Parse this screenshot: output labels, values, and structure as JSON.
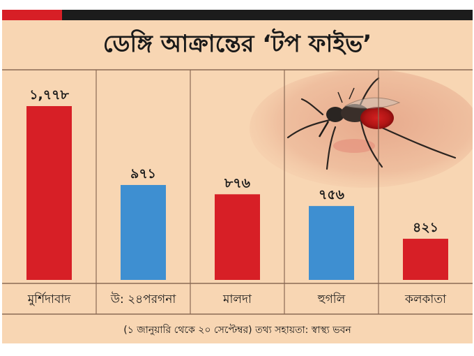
{
  "colors": {
    "background": "#f8d6b3",
    "top_bar": "#1c1c1c",
    "accent": "#d71f26",
    "bar_red": "#d71f26",
    "bar_blue": "#3e8fd1",
    "rule": "#8a6a55"
  },
  "chart_data": {
    "type": "bar",
    "title": "ডেঙ্গি আক্রান্তের ‘টপ ফাইভ’",
    "categories": [
      "মুর্শিদাবাদ",
      "উ: ২৪পরগনা",
      "মালদা",
      "হুগলি",
      "কলকাতা"
    ],
    "values": [
      1778,
      971,
      876,
      756,
      421
    ],
    "value_labels": [
      "১,৭৭৮",
      "৯৭১",
      "৮৭৬",
      "৭৫৬",
      "৪২১"
    ],
    "bar_colors": [
      "#d71f26",
      "#3e8fd1",
      "#d71f26",
      "#3e8fd1",
      "#d71f26"
    ],
    "ylim": [
      0,
      1778
    ],
    "xlabel": "",
    "ylabel": "",
    "grid": false,
    "legend": "none",
    "footnote": "(১ জানুয়ারি থেকে ২০ সেপ্টেম্বর) তথ্য সহায়তা: স্বাস্থ্য ভবন",
    "decoration": "mosquito-photo"
  }
}
